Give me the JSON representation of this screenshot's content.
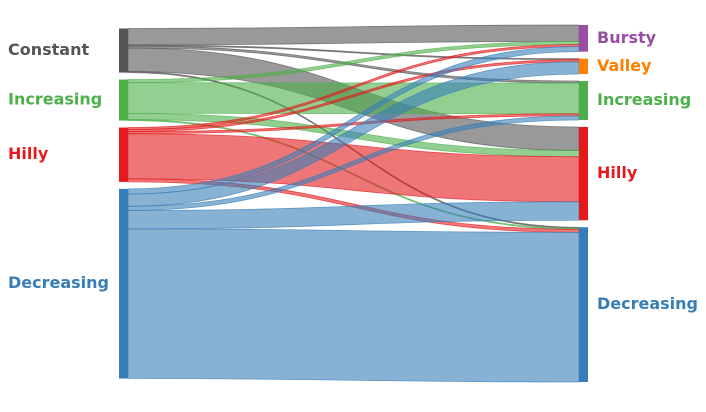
{
  "chart_data": {
    "type": "sankey",
    "sources": [
      {
        "name": "Constant",
        "color": "#555555"
      },
      {
        "name": "Increasing",
        "color": "#4daf4a"
      },
      {
        "name": "Hilly",
        "color": "#e41a1c"
      },
      {
        "name": "Decreasing",
        "color": "#377eb8"
      }
    ],
    "targets": [
      {
        "name": "Bursty",
        "color": "#984ea3"
      },
      {
        "name": "Valley",
        "color": "#ff7f00"
      },
      {
        "name": "Increasing",
        "color": "#4daf4a"
      },
      {
        "name": "Hilly",
        "color": "#e41a1c"
      },
      {
        "name": "Decreasing",
        "color": "#377eb8"
      }
    ],
    "flows": [
      [
        16,
        1,
        2,
        23,
        1
      ],
      [
        3,
        0,
        30,
        6,
        1
      ],
      [
        2,
        2,
        2,
        44,
        3
      ],
      [
        5,
        12,
        4,
        18,
        146
      ]
    ]
  }
}
